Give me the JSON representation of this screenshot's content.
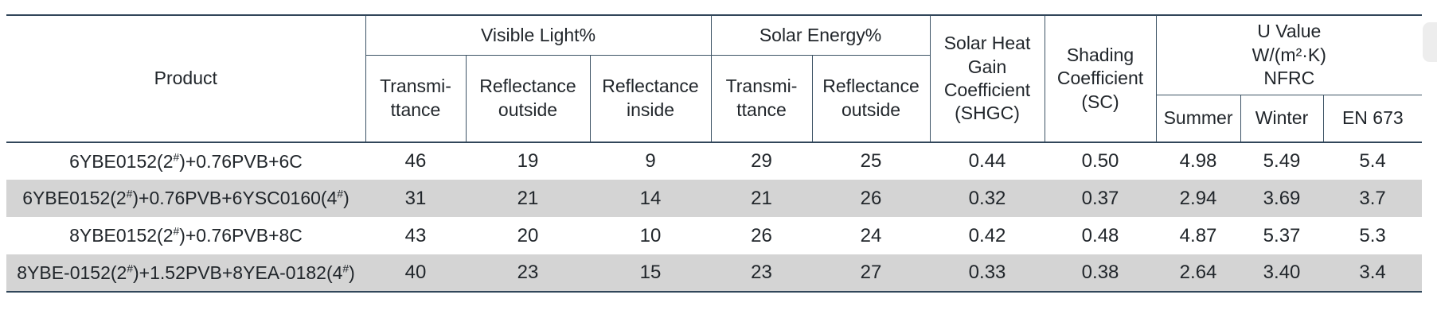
{
  "colors": {
    "border_dark": "#31465a",
    "border_inner": "#3d5365",
    "row_stripe": "#d4d4d4",
    "page_tab": "#ededed",
    "text": "#21262b"
  },
  "header": {
    "product": "Product",
    "visible_light": {
      "label": "Visible Light%",
      "sub": [
        [
          "Transmi-",
          "ttance"
        ],
        [
          "Reflectance",
          "outside"
        ],
        [
          "Reflectance",
          "inside"
        ]
      ]
    },
    "solar_energy": {
      "label": "Solar Energy%",
      "sub": [
        [
          "Transmi-",
          "ttance"
        ],
        [
          "Reflectance",
          "outside"
        ]
      ]
    },
    "shgc": [
      "Solar Heat",
      "Gain",
      "Coefficient",
      "(SHGC)"
    ],
    "shading": [
      "Shading",
      "Coefficient",
      "(SC)"
    ],
    "u_value": {
      "label": [
        "U Value",
        "W/(m²·K)",
        "NFRC"
      ],
      "sub": [
        "Summer",
        "Winter",
        "EN 673"
      ]
    }
  },
  "rows": [
    {
      "product": "6YBE0152(2#)+0.76PVB+6C",
      "values": [
        "46",
        "19",
        "9",
        "29",
        "25",
        "0.44",
        "0.50",
        "4.98",
        "5.49",
        "5.4"
      ]
    },
    {
      "product": "6YBE0152(2#)+0.76PVB+6YSC0160(4#)",
      "values": [
        "31",
        "21",
        "14",
        "21",
        "26",
        "0.32",
        "0.37",
        "2.94",
        "3.69",
        "3.7"
      ]
    },
    {
      "product": "8YBE0152(2#)+0.76PVB+8C",
      "values": [
        "43",
        "20",
        "10",
        "26",
        "24",
        "0.42",
        "0.48",
        "4.87",
        "5.37",
        "5.3"
      ]
    },
    {
      "product": "8YBE-0152(2#)+1.52PVB+8YEA-0182(4#)",
      "values": [
        "40",
        "23",
        "15",
        "23",
        "27",
        "0.33",
        "0.38",
        "2.64",
        "3.40",
        "3.4"
      ]
    }
  ]
}
